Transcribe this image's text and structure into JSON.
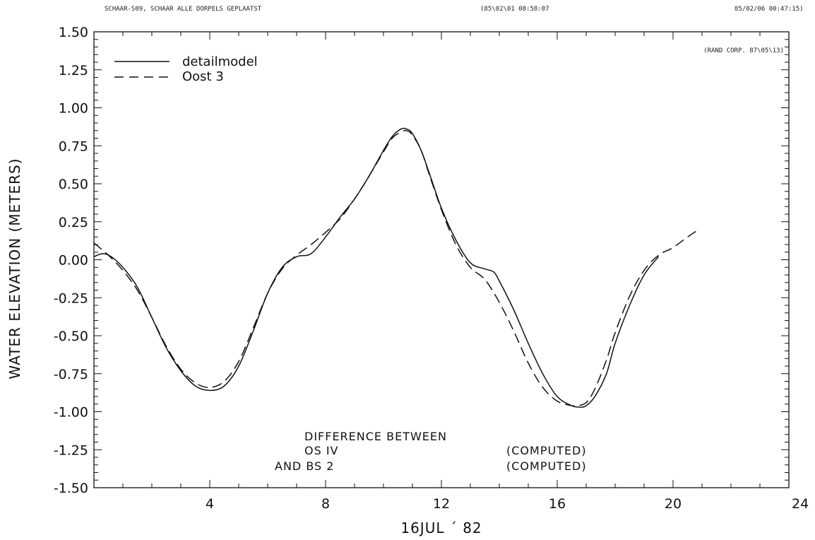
{
  "header": {
    "left": "SCHAAR-S09, SCHAAR ALLE DORPELS GEPLAATST",
    "middle": "(85\\02\\01 08:58:07",
    "right": "85/02/06 00:47:15)"
  },
  "credit": "(RAND CORP. 87\\05\\13)",
  "annotation": {
    "line1": "DIFFERENCE BETWEEN",
    "line2_left": "OS IV",
    "line2_right": "(COMPUTED)",
    "line3_left": "AND BS 2",
    "line3_right": "(COMPUTED)"
  },
  "chart_data": {
    "type": "line",
    "title": "",
    "xlabel": "16JUL ´ 82",
    "ylabel": "WATER ELEVATION (METERS)",
    "xlim": [
      0,
      24
    ],
    "ylim": [
      -1.5,
      1.5
    ],
    "xticks": [
      4,
      8,
      12,
      16,
      20,
      24
    ],
    "yticks": [
      1.5,
      1.25,
      1.0,
      0.75,
      0.5,
      0.25,
      0.0,
      -0.25,
      -0.5,
      -0.75,
      -1.0,
      -1.25,
      -1.5
    ],
    "ytick_labels": [
      "1.50",
      "1.25",
      "1.00",
      "0.75",
      "0.50",
      "0.25",
      "0.00",
      "-0.25",
      "-0.50",
      "-0.75",
      "-1.00",
      "-1.25",
      "-1.50"
    ],
    "xtick_labels": [
      "4",
      "8",
      "12",
      "16",
      "20",
      "24"
    ],
    "grid": false,
    "legend_position": "top-left",
    "series": [
      {
        "name": "detailmodel",
        "style": "solid",
        "x": [
          0.0,
          0.3,
          0.6,
          1.0,
          1.5,
          2.0,
          2.5,
          3.0,
          3.5,
          4.0,
          4.5,
          5.0,
          5.5,
          6.0,
          6.5,
          7.0,
          7.5,
          8.0,
          8.5,
          9.0,
          9.5,
          10.0,
          10.3,
          10.6,
          10.8,
          11.0,
          11.3,
          11.6,
          12.0,
          12.5,
          13.0,
          13.5,
          13.8,
          14.0,
          14.5,
          15.0,
          15.5,
          16.0,
          16.5,
          16.8,
          17.0,
          17.3,
          17.7,
          18.0,
          18.5,
          19.0,
          19.5
        ],
        "y": [
          0.02,
          0.04,
          0.02,
          -0.05,
          -0.18,
          -0.38,
          -0.58,
          -0.73,
          -0.83,
          -0.86,
          -0.83,
          -0.7,
          -0.47,
          -0.22,
          -0.05,
          0.02,
          0.04,
          0.15,
          0.28,
          0.4,
          0.55,
          0.72,
          0.81,
          0.86,
          0.86,
          0.83,
          0.72,
          0.56,
          0.34,
          0.13,
          -0.02,
          -0.06,
          -0.08,
          -0.14,
          -0.33,
          -0.55,
          -0.75,
          -0.9,
          -0.96,
          -0.97,
          -0.96,
          -0.9,
          -0.75,
          -0.55,
          -0.3,
          -0.1,
          0.02
        ]
      },
      {
        "name": "Oost 3",
        "style": "dashed",
        "x": [
          0.0,
          0.5,
          1.0,
          1.5,
          2.0,
          2.5,
          3.0,
          3.5,
          4.0,
          4.5,
          5.0,
          5.5,
          6.0,
          6.5,
          7.0,
          7.5,
          8.0,
          8.5,
          9.0,
          9.5,
          10.0,
          10.3,
          10.6,
          10.8,
          11.0,
          11.3,
          11.6,
          12.0,
          12.5,
          13.0,
          13.5,
          14.0,
          14.5,
          15.0,
          15.5,
          16.0,
          16.5,
          16.7,
          17.0,
          17.3,
          17.7,
          18.0,
          18.5,
          19.0,
          19.5,
          20.0,
          20.5,
          20.9
        ],
        "y": [
          0.11,
          0.03,
          -0.07,
          -0.2,
          -0.38,
          -0.57,
          -0.72,
          -0.81,
          -0.84,
          -0.8,
          -0.67,
          -0.45,
          -0.22,
          -0.06,
          0.03,
          0.1,
          0.18,
          0.27,
          0.4,
          0.55,
          0.71,
          0.8,
          0.84,
          0.85,
          0.82,
          0.72,
          0.55,
          0.33,
          0.1,
          -0.05,
          -0.13,
          -0.28,
          -0.47,
          -0.68,
          -0.84,
          -0.93,
          -0.96,
          -0.96,
          -0.94,
          -0.85,
          -0.66,
          -0.48,
          -0.24,
          -0.07,
          0.03,
          0.08,
          0.15,
          0.2
        ]
      }
    ]
  }
}
